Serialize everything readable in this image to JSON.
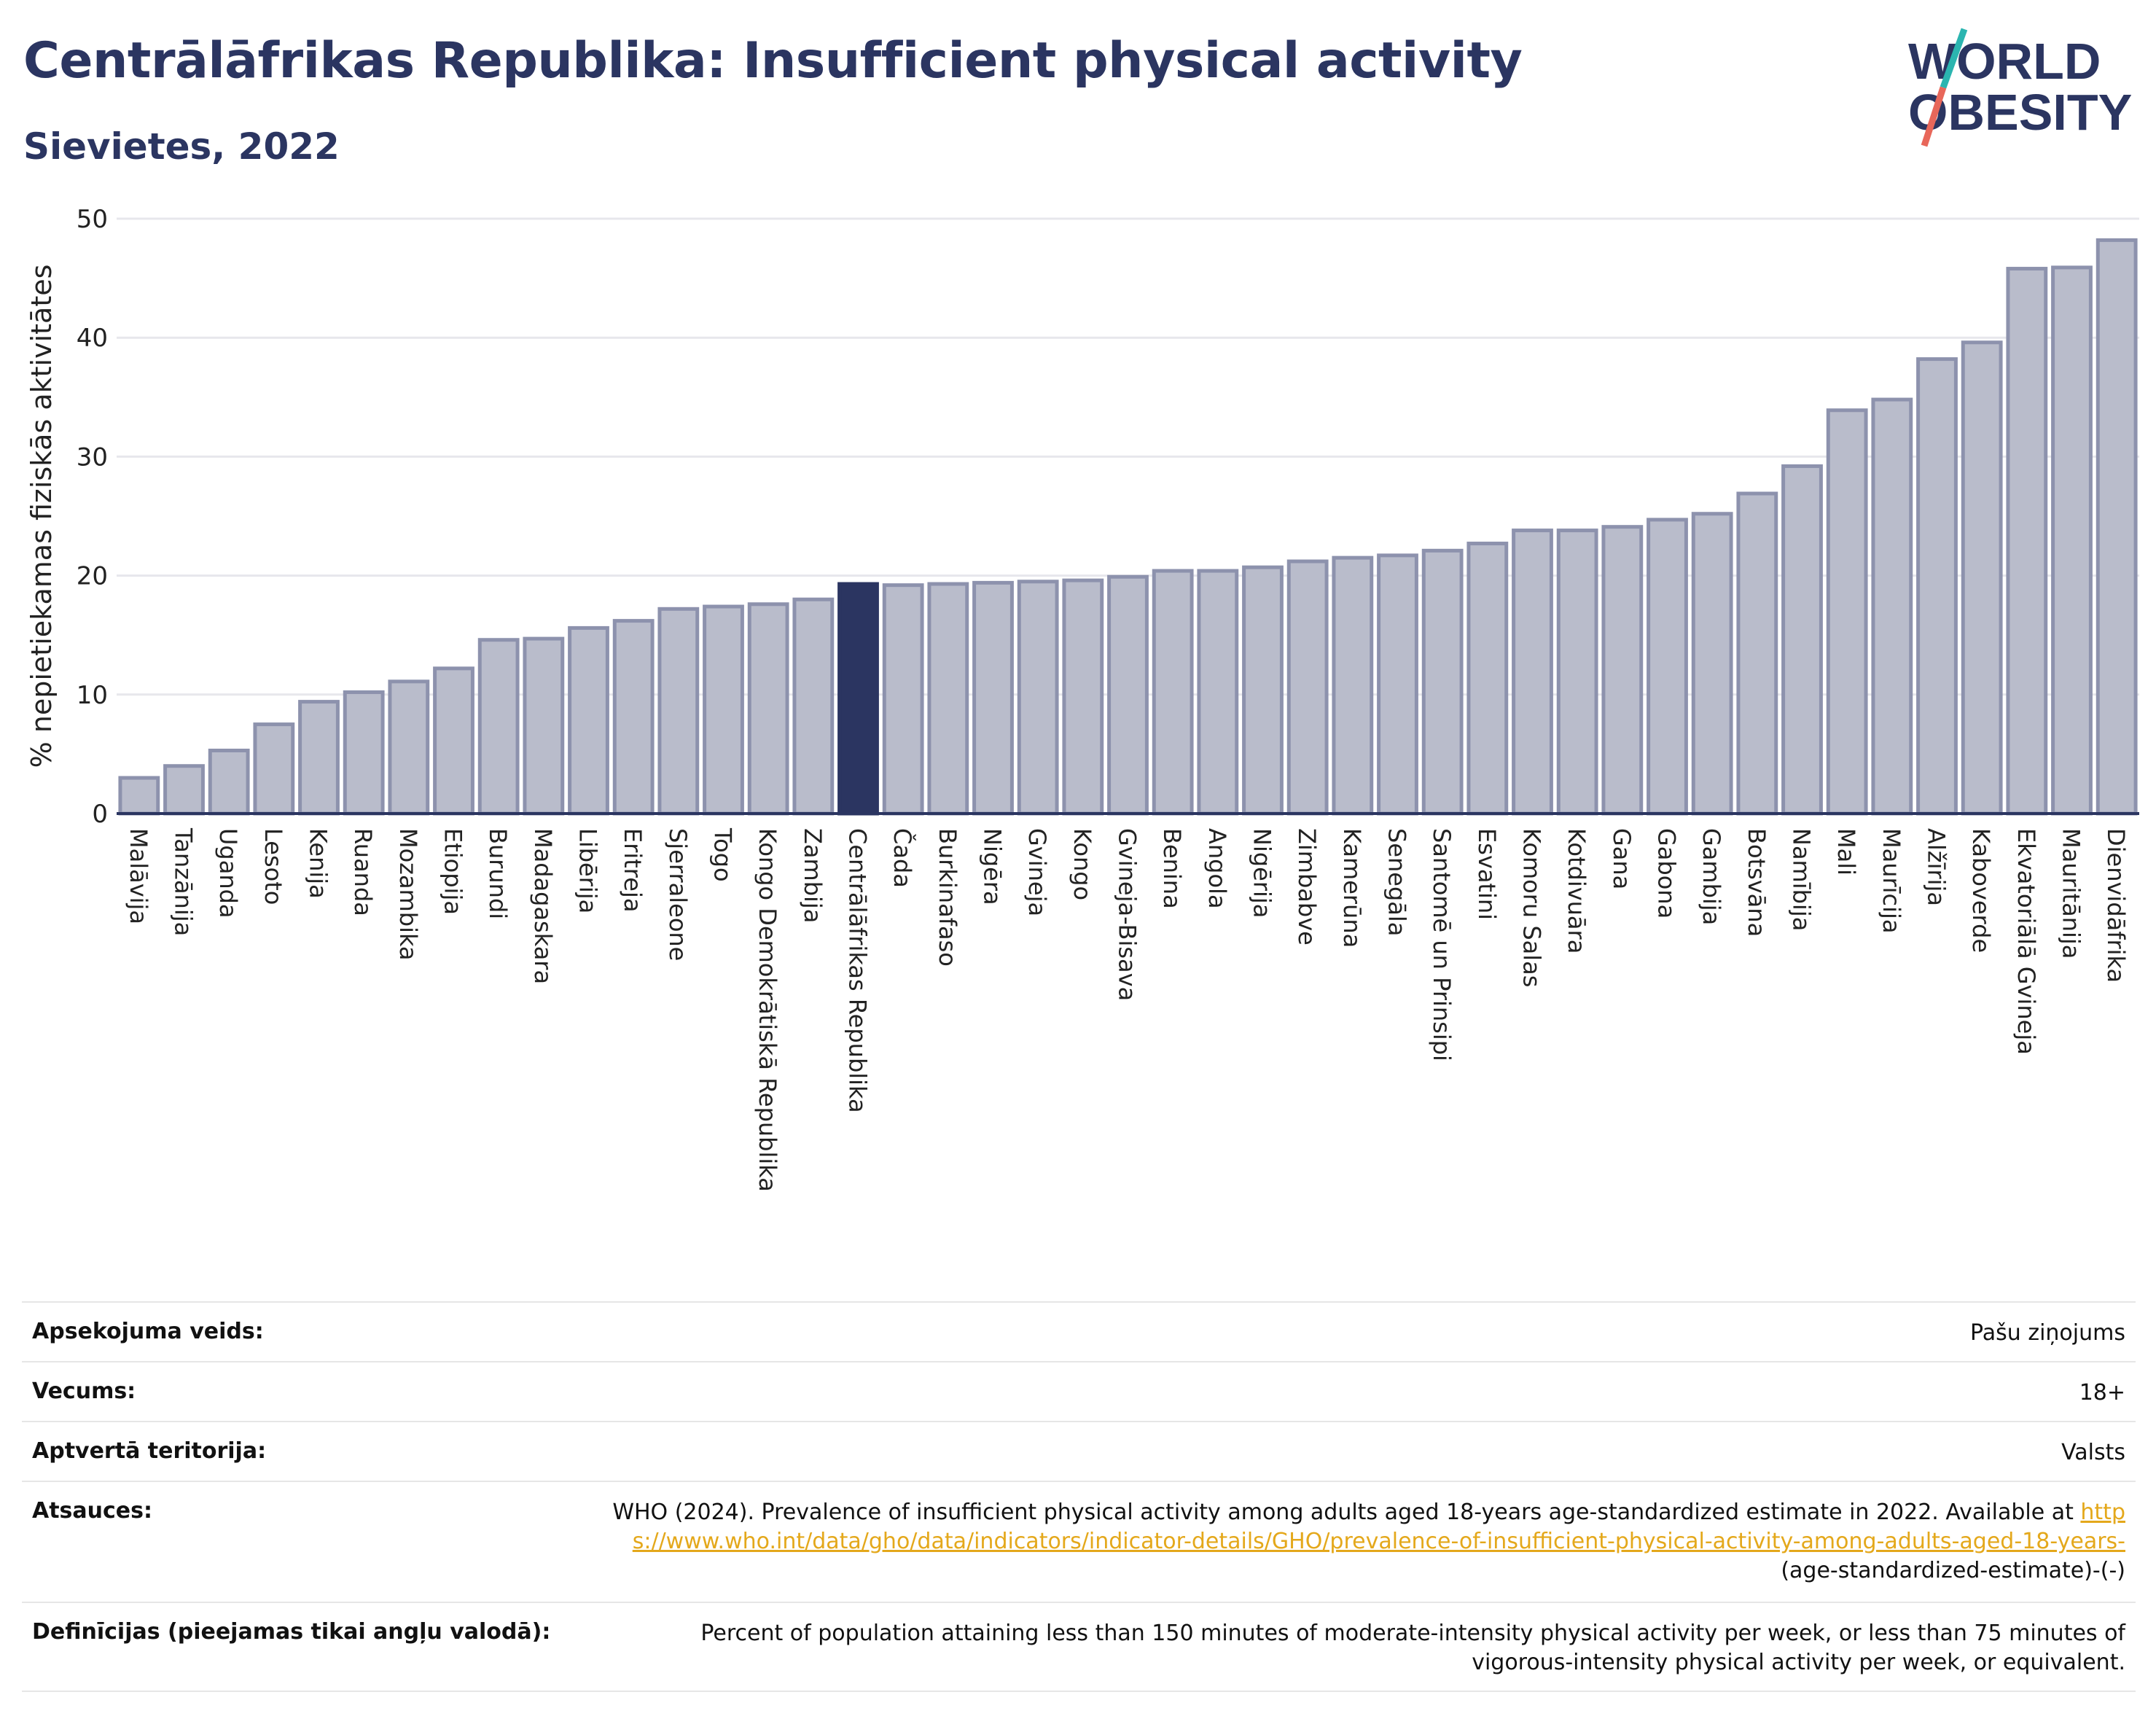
{
  "header": {
    "title": "Centrālāfrikas Republika: Insufficient physical activity",
    "subtitle": "Sievietes, 2022"
  },
  "logo": {
    "line1": "WORLD",
    "line2": "OBESITY",
    "text_color": "#2b3561",
    "slash_colors": [
      "#2bb5b0",
      "#e8675a"
    ]
  },
  "chart_data": {
    "type": "bar",
    "title": "",
    "xlabel": "",
    "ylabel": "% nepietiekamas fiziskās aktivitātes",
    "ylim": [
      0,
      50
    ],
    "yticks": [
      0,
      10,
      20,
      30,
      40,
      50
    ],
    "grid": true,
    "highlight": "Centrālāfrikas Republika",
    "colors": {
      "bar": "#b9bccb",
      "bar_edge": "#8d92ad",
      "highlight": "#2b3561"
    },
    "categories": [
      "Malāvija",
      "Tanzānija",
      "Uganda",
      "Lesoto",
      "Kenija",
      "Ruanda",
      "Mozambika",
      "Etiopija",
      "Burundi",
      "Madagaskara",
      "Libērija",
      "Eritreja",
      "Sjerraleone",
      "Togo",
      "Kongo Demokrātiskā Republika",
      "Zambija",
      "Centrālāfrikas Republika",
      "Čada",
      "Burkinafaso",
      "Nigēra",
      "Gvineja",
      "Kongo",
      "Gvineja-Bisava",
      "Benina",
      "Angola",
      "Nigērija",
      "Zimbabve",
      "Kamerūna",
      "Senegāla",
      "Santomē un Prinsipi",
      "Esvatini",
      "Komoru Salas",
      "Kotdivuāra",
      "Gana",
      "Gabona",
      "Gambija",
      "Botsvāna",
      "Namībija",
      "Mali",
      "Maurīcija",
      "Alžīrija",
      "Kaboverde",
      "Ekvatoriālā Gvineja",
      "Mauritānija",
      "Dienvidāfrika"
    ],
    "values": [
      3.0,
      4.0,
      5.3,
      7.5,
      9.4,
      10.2,
      11.1,
      12.2,
      14.6,
      14.7,
      15.6,
      16.2,
      17.2,
      17.4,
      17.6,
      18.0,
      19.3,
      19.2,
      19.3,
      19.4,
      19.5,
      19.6,
      19.9,
      20.4,
      20.4,
      20.7,
      21.2,
      21.5,
      21.7,
      22.1,
      22.7,
      23.8,
      23.8,
      24.1,
      24.7,
      25.2,
      26.9,
      29.2,
      33.9,
      34.8,
      38.2,
      39.6,
      45.8,
      45.9,
      48.2
    ]
  },
  "meta": {
    "rows": [
      {
        "label": "Apsekojuma veids:",
        "value": "Pašu ziņojums"
      },
      {
        "label": "Vecums:",
        "value": "18+"
      },
      {
        "label": "Aptvertā teritorija:",
        "value": "Valsts"
      }
    ],
    "sources": {
      "label": "Atsauces:",
      "text": "WHO (2024). Prevalence of insufficient physical activity among adults aged 18-years age-standardized estimate in 2022. Available at",
      "link": "https://www.who.int/data/gho/data/indicators/indicator-details/GHO/prevalence-of-insufficient-physical-activity-among-adults-aged-18-years-",
      "suffix": "(age-standardized-estimate)-(-)"
    },
    "definitions": {
      "label": "Definīcijas (pieejamas tikai angļu valodā):",
      "text": "Percent of population attaining less than 150 minutes of moderate-intensity physical activity per week, or less than 75 minutes of vigorous-intensity physical activity per week, or equivalent."
    }
  }
}
